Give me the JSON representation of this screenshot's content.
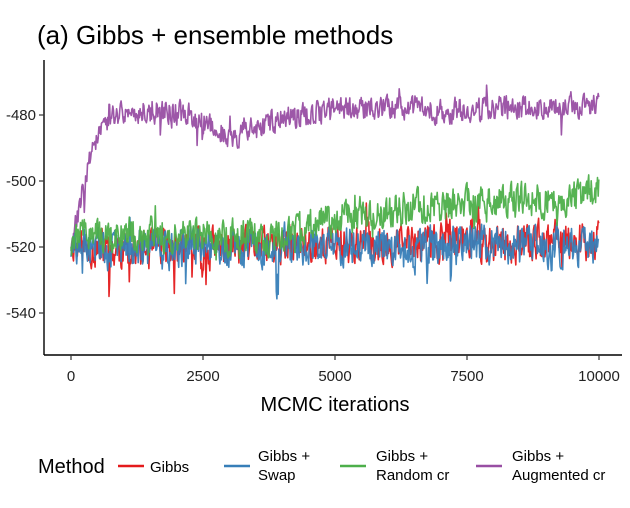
{
  "chart_data": {
    "type": "line",
    "title": "(a) Gibbs + ensemble methods",
    "xlabel": "MCMC iterations",
    "ylabel": "",
    "xlim": [
      -300,
      10200
    ],
    "ylim": [
      -549,
      -468
    ],
    "x_ticks": [
      0,
      2500,
      5000,
      7500,
      10000
    ],
    "x_tick_labels": [
      "0",
      "2500",
      "5000",
      "7500",
      "10000"
    ],
    "y_ticks": [
      -480,
      -500,
      -520,
      -540
    ],
    "y_tick_labels": [
      "-480",
      "-500",
      "-520",
      "-540"
    ],
    "grid": false,
    "legend": {
      "title": "Method",
      "position": "bottom",
      "entries": [
        {
          "key": "gibbs",
          "lines": [
            "Gibbs"
          ],
          "color": "#E41A1C"
        },
        {
          "key": "swap",
          "lines": [
            "Gibbs +",
            "Swap"
          ],
          "color": "#377EB8"
        },
        {
          "key": "random",
          "lines": [
            "Gibbs +",
            "Random cr"
          ],
          "color": "#4DAF4A"
        },
        {
          "key": "augmented",
          "lines": [
            "Gibbs +",
            "Augmented cr"
          ],
          "color": "#984EA3"
        }
      ]
    },
    "series": [
      {
        "key": "gibbs",
        "color": "#E41A1C",
        "x": [
          0,
          250,
          500,
          750,
          1000,
          1500,
          2000,
          2500,
          3000,
          3500,
          4000,
          4500,
          5000,
          5500,
          6000,
          6500,
          7000,
          7500,
          8000,
          8500,
          9000,
          9500,
          10000
        ],
        "center": [
          -520,
          -520,
          -521,
          -521,
          -521,
          -521,
          -520,
          -521,
          -520,
          -520,
          -520,
          -519,
          -519,
          -519,
          -519,
          -519,
          -518,
          -518,
          -519,
          -519,
          -518,
          -518,
          -518
        ],
        "spread": [
          6,
          7,
          8,
          9,
          8,
          8,
          8,
          9,
          8,
          8,
          8,
          8,
          8,
          8,
          8,
          8,
          8,
          8,
          8,
          8,
          8,
          8,
          8
        ]
      },
      {
        "key": "swap",
        "color": "#377EB8",
        "x": [
          0,
          250,
          500,
          750,
          1000,
          1500,
          2000,
          2500,
          3000,
          3500,
          4000,
          4500,
          5000,
          5500,
          6000,
          6500,
          7000,
          7500,
          8000,
          8500,
          9000,
          9500,
          10000
        ],
        "center": [
          -521,
          -520,
          -520,
          -521,
          -520,
          -521,
          -520,
          -520,
          -521,
          -520,
          -520,
          -520,
          -520,
          -519,
          -520,
          -521,
          -520,
          -519,
          -519,
          -520,
          -520,
          -520,
          -521
        ],
        "spread": [
          6,
          7,
          7,
          8,
          8,
          9,
          8,
          8,
          8,
          8,
          8,
          8,
          8,
          8,
          8,
          9,
          9,
          8,
          8,
          8,
          8,
          8,
          8
        ]
      },
      {
        "key": "random",
        "color": "#4DAF4A",
        "x": [
          0,
          250,
          500,
          750,
          1000,
          1500,
          2000,
          2500,
          3000,
          3500,
          4000,
          4500,
          5000,
          5500,
          6000,
          6500,
          7000,
          7500,
          8000,
          8500,
          9000,
          9500,
          10000
        ],
        "center": [
          -518,
          -515,
          -516,
          -517,
          -516,
          -516,
          -516,
          -516,
          -517,
          -518,
          -516,
          -513,
          -511,
          -510,
          -510,
          -508,
          -508,
          -507,
          -507,
          -506,
          -506,
          -505,
          -503
        ],
        "spread": [
          6,
          6,
          7,
          7,
          7,
          7,
          7,
          7,
          8,
          8,
          7,
          7,
          7,
          7,
          7,
          7,
          7,
          7,
          7,
          7,
          7,
          7,
          7
        ]
      },
      {
        "key": "augmented",
        "color": "#984EA3",
        "x": [
          0,
          100,
          200,
          300,
          400,
          600,
          800,
          1000,
          1500,
          2000,
          2500,
          3000,
          3500,
          4000,
          4500,
          5000,
          5500,
          6000,
          6500,
          7000,
          7500,
          8000,
          8500,
          9000,
          9500,
          10000
        ],
        "center": [
          -520,
          -512,
          -504,
          -496,
          -490,
          -484,
          -480,
          -479,
          -479,
          -479,
          -482,
          -487,
          -484,
          -481,
          -480,
          -478,
          -478,
          -478,
          -478,
          -479,
          -478,
          -478,
          -478,
          -477,
          -477,
          -477
        ],
        "spread": [
          4,
          5,
          5,
          5,
          5,
          5,
          5,
          5,
          5,
          5,
          5,
          5,
          5,
          5,
          5,
          5,
          5,
          5,
          5,
          5,
          5,
          5,
          5,
          5,
          5,
          5
        ]
      }
    ]
  }
}
